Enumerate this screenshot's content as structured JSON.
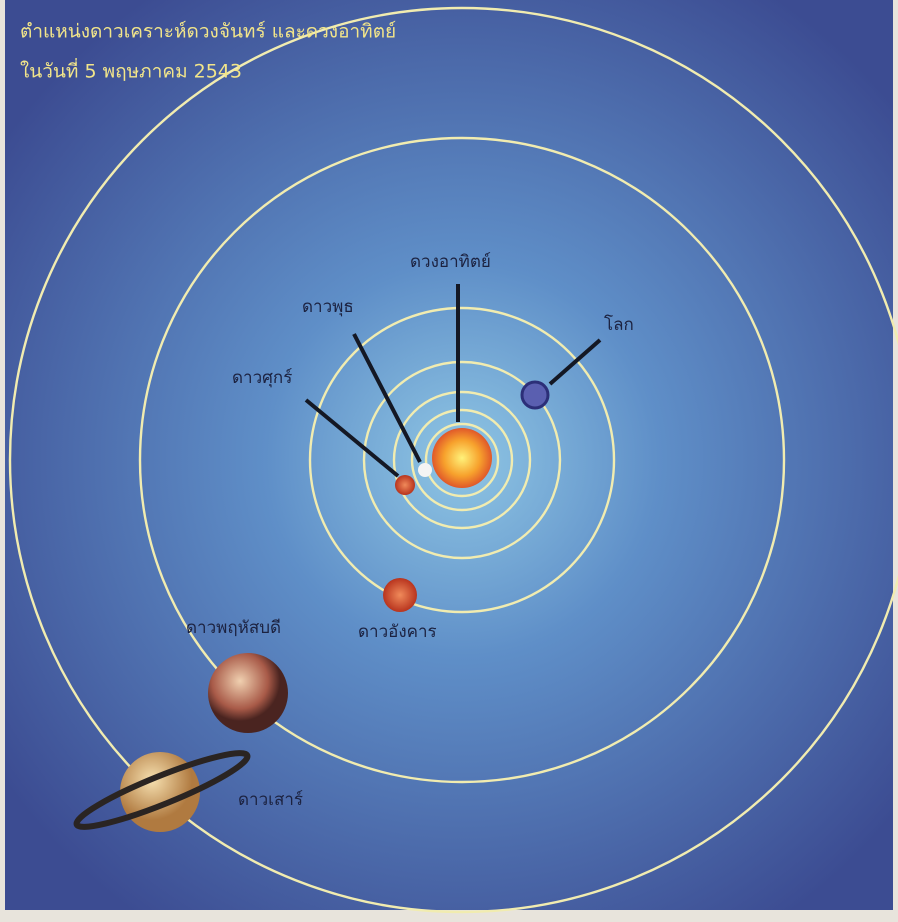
{
  "header": {
    "title": "ตำแหน่งดาวเคราะห์ดวงจันทร์ และดวงอาทิตย์",
    "subtitle": "ในวันที่ 5 พฤษภาคม 2543"
  },
  "labels": {
    "sun": "ดวงอาทิตย์",
    "mercury": "ดาวพุธ",
    "venus": "ดาวศุกร์",
    "earth": "โลก",
    "mars": "ดาวอังคาร",
    "jupiter": "ดาวพฤหัสบดี",
    "saturn": "ดาวเสาร์"
  }
}
